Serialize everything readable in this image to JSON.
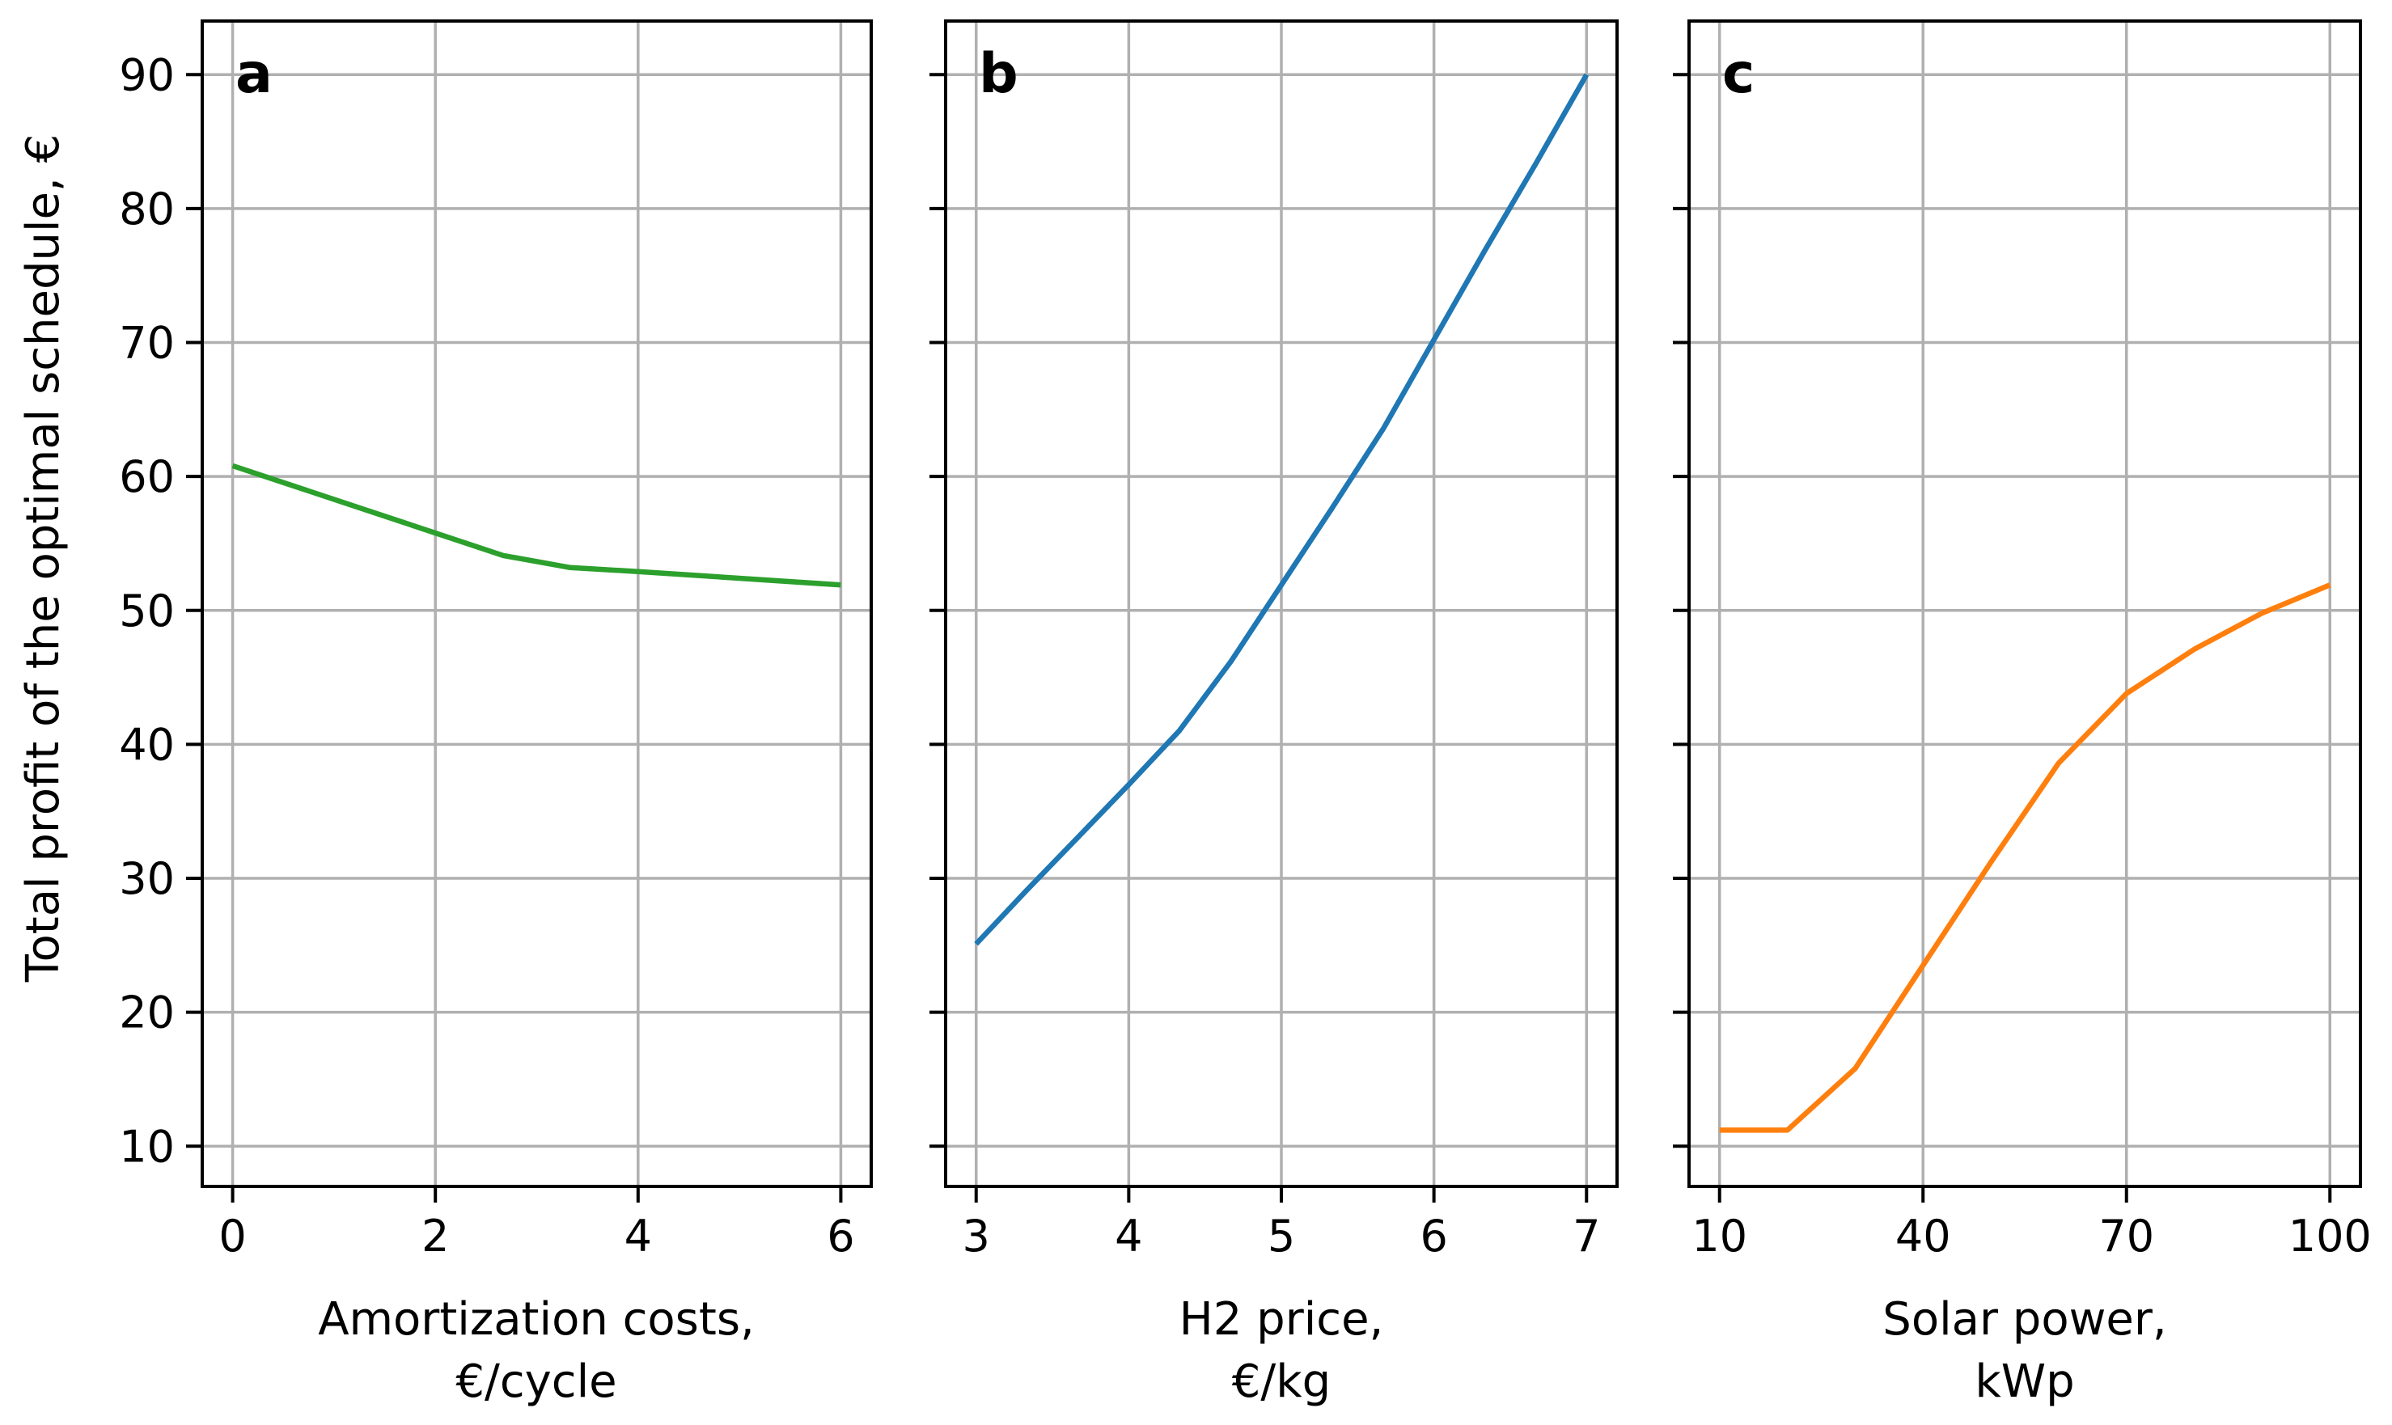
{
  "chart_data": [
    {
      "type": "line",
      "panel_label": "a",
      "xlabel": [
        "Amortization costs,",
        "€/cycle"
      ],
      "ylabel": "Total profit of the optimal schedule, €",
      "xlim": [
        -0.3,
        6.3
      ],
      "ylim": [
        7,
        94
      ],
      "xticks": [
        0,
        2,
        4,
        6
      ],
      "xtick_labels": [
        "0",
        "2",
        "4",
        "6"
      ],
      "yticks": [
        10,
        20,
        30,
        40,
        50,
        60,
        70,
        80,
        90
      ],
      "ytick_labels": [
        "10",
        "20",
        "30",
        "40",
        "50",
        "60",
        "70",
        "80",
        "90"
      ],
      "color": "#2ca02c",
      "grid": true,
      "series": [
        {
          "name": "profit",
          "x": [
            0,
            2.67,
            3.33,
            4,
            6
          ],
          "y": [
            60.8,
            54.1,
            53.2,
            52.9,
            51.9
          ]
        }
      ]
    },
    {
      "type": "line",
      "panel_label": "b",
      "xlabel": [
        "H2 price,",
        "€/kg"
      ],
      "xlim": [
        2.8,
        7.2
      ],
      "ylim": [
        7,
        94
      ],
      "xticks": [
        3,
        4,
        5,
        6,
        7
      ],
      "xtick_labels": [
        "3",
        "4",
        "5",
        "6",
        "7"
      ],
      "yticks": [
        10,
        20,
        30,
        40,
        50,
        60,
        70,
        80,
        90
      ],
      "color": "#1f77b4",
      "grid": true,
      "series": [
        {
          "name": "profit",
          "x": [
            3,
            3.33,
            3.67,
            4,
            4.33,
            4.67,
            5,
            5.33,
            5.67,
            6,
            6.33,
            6.67,
            7
          ],
          "y": [
            25.1,
            29.1,
            33.1,
            37.0,
            41.0,
            46.2,
            51.9,
            57.6,
            63.6,
            70.2,
            76.8,
            83.4,
            90.0
          ]
        }
      ]
    },
    {
      "type": "line",
      "panel_label": "c",
      "xlabel": [
        "Solar power,",
        "kWp"
      ],
      "xlim": [
        5.5,
        104.5
      ],
      "ylim": [
        7,
        94
      ],
      "xticks": [
        10,
        40,
        70,
        100
      ],
      "xtick_labels": [
        "10",
        "40",
        "70",
        "100"
      ],
      "yticks": [
        10,
        20,
        30,
        40,
        50,
        60,
        70,
        80,
        90
      ],
      "color": "#ff7f0e",
      "grid": true,
      "series": [
        {
          "name": "profit",
          "x": [
            10,
            20,
            30,
            40,
            50,
            60,
            70,
            80,
            90,
            100
          ],
          "y": [
            11.2,
            11.2,
            15.8,
            23.5,
            31.2,
            38.6,
            43.8,
            47.1,
            49.8,
            51.9
          ]
        }
      ]
    }
  ]
}
